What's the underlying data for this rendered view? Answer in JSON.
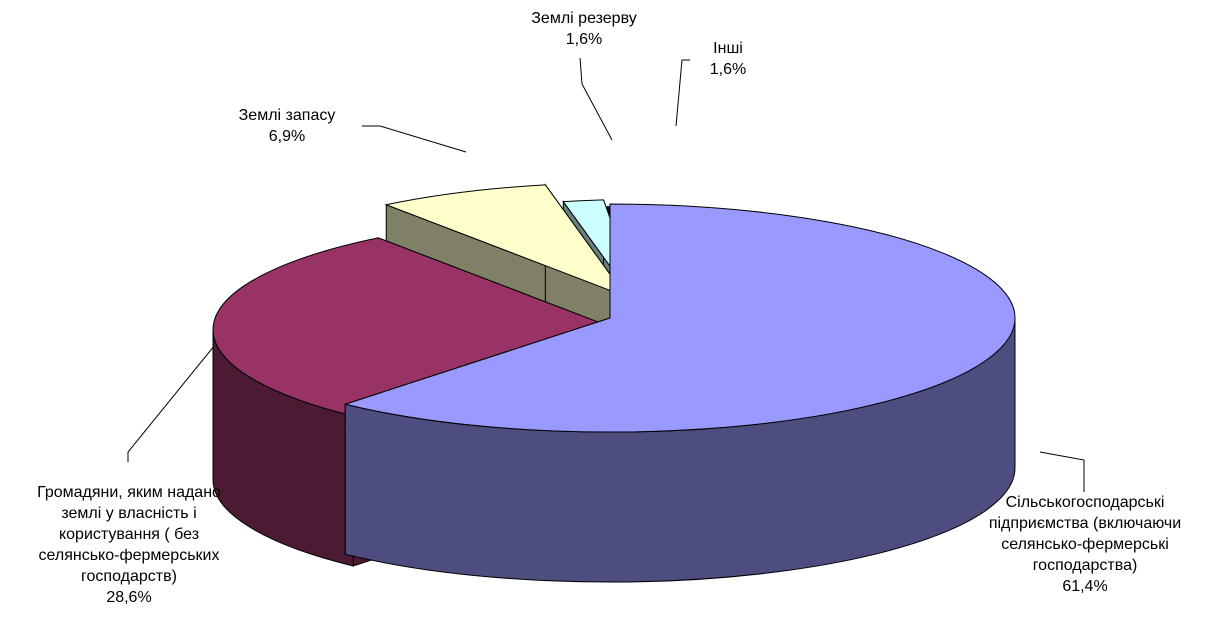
{
  "chart_data": {
    "type": "pie",
    "style": "3d-exploded",
    "legend": "none",
    "slices": [
      {
        "key": "agri",
        "name_lines": [
          "Сільськогосподарські",
          "підприємства (включаючи",
          "селянсько-фермерські",
          "господарства)"
        ],
        "value": 61.4,
        "value_label": "61,4%",
        "top_color": "#9999ff",
        "side_color": "#4d4d80"
      },
      {
        "key": "citizens",
        "name_lines": [
          "Громадяни, яким надано",
          "землі у власність і",
          "користування ( без",
          "селянсько-фермерських",
          "господарств)"
        ],
        "value": 28.6,
        "value_label": "28,6%",
        "top_color": "#993366",
        "side_color": "#4d1a33"
      },
      {
        "key": "stock",
        "name_lines": [
          "Землі запасу"
        ],
        "value": 6.9,
        "value_label": "6,9%",
        "top_color": "#ffffcc",
        "side_color": "#808066"
      },
      {
        "key": "reserve",
        "name_lines": [
          "Землі резерву"
        ],
        "value": 1.6,
        "value_label": "1,6%",
        "top_color": "#ccffff",
        "side_color": "#668080"
      },
      {
        "key": "other",
        "name_lines": [
          "Інші"
        ],
        "value": 1.6,
        "value_label": "1,6%",
        "top_color": "#660066",
        "side_color": "#330033"
      }
    ]
  }
}
